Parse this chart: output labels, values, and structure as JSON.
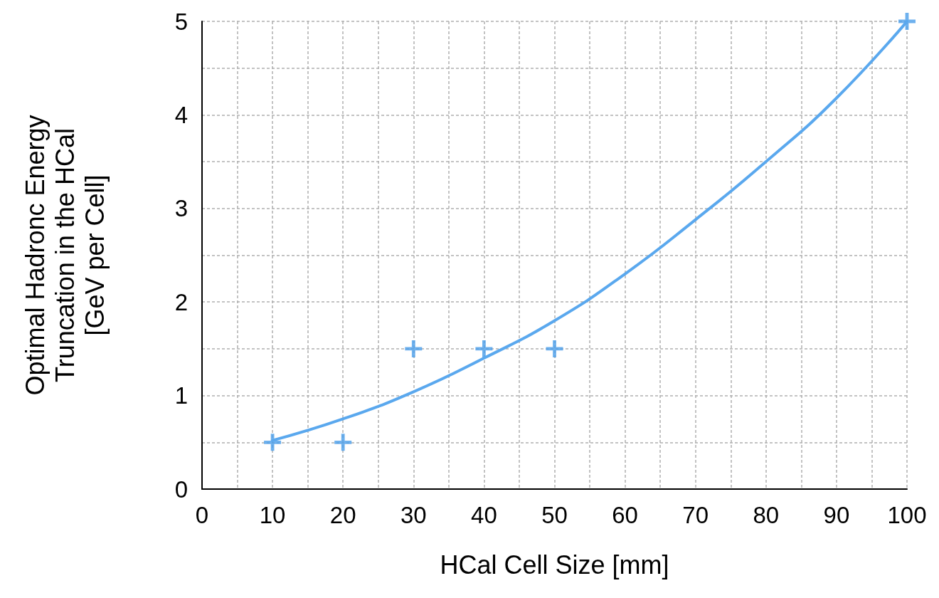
{
  "chart_data": {
    "type": "scatter",
    "xlabel": "HCal Cell Size [mm]",
    "ylabel": "Optimal Hadronc Energy\nTruncation in the HCal\n[GeV per Cell]",
    "series": [
      {
        "color": "#4a9eea",
        "marker": "cross",
        "x": [
          10,
          20,
          30,
          40,
          50,
          100
        ],
        "values": [
          0.5,
          0.5,
          1.5,
          1.5,
          1.5,
          5
        ]
      },
      {
        "type": "line",
        "color": "#5aa8ee",
        "marker": "none",
        "line_style": "solid",
        "x": [
          10,
          20,
          30,
          40,
          50,
          60,
          70,
          80,
          90,
          100
        ],
        "values": [
          0.52,
          0.75,
          1.04,
          1.4,
          1.8,
          2.3,
          2.88,
          3.5,
          4.18,
          5
        ]
      }
    ],
    "xlim": [
      0,
      100
    ],
    "xticks": [
      0,
      {
        "value": 5,
        "label": null
      },
      10,
      {
        "value": 15,
        "label": null
      },
      20,
      {
        "value": 25,
        "label": null
      },
      30,
      {
        "value": 35,
        "label": null
      },
      40,
      {
        "value": 45,
        "label": null
      },
      50,
      {
        "value": 55,
        "label": null
      },
      60,
      {
        "value": 65,
        "label": null
      },
      70,
      {
        "value": 75,
        "label": null
      },
      80,
      {
        "value": 85,
        "label": null
      },
      90,
      {
        "value": 95,
        "label": null
      },
      100
    ],
    "ylim": [
      0,
      5
    ],
    "yticks": [
      0,
      {
        "value": 0.5,
        "label": null
      },
      1,
      {
        "value": 1.5,
        "label": null
      },
      2,
      {
        "value": 2.5,
        "label": null
      },
      3,
      {
        "value": 3.5,
        "label": null
      },
      4,
      {
        "value": 4.5,
        "label": null
      },
      5
    ],
    "grid": true
  }
}
